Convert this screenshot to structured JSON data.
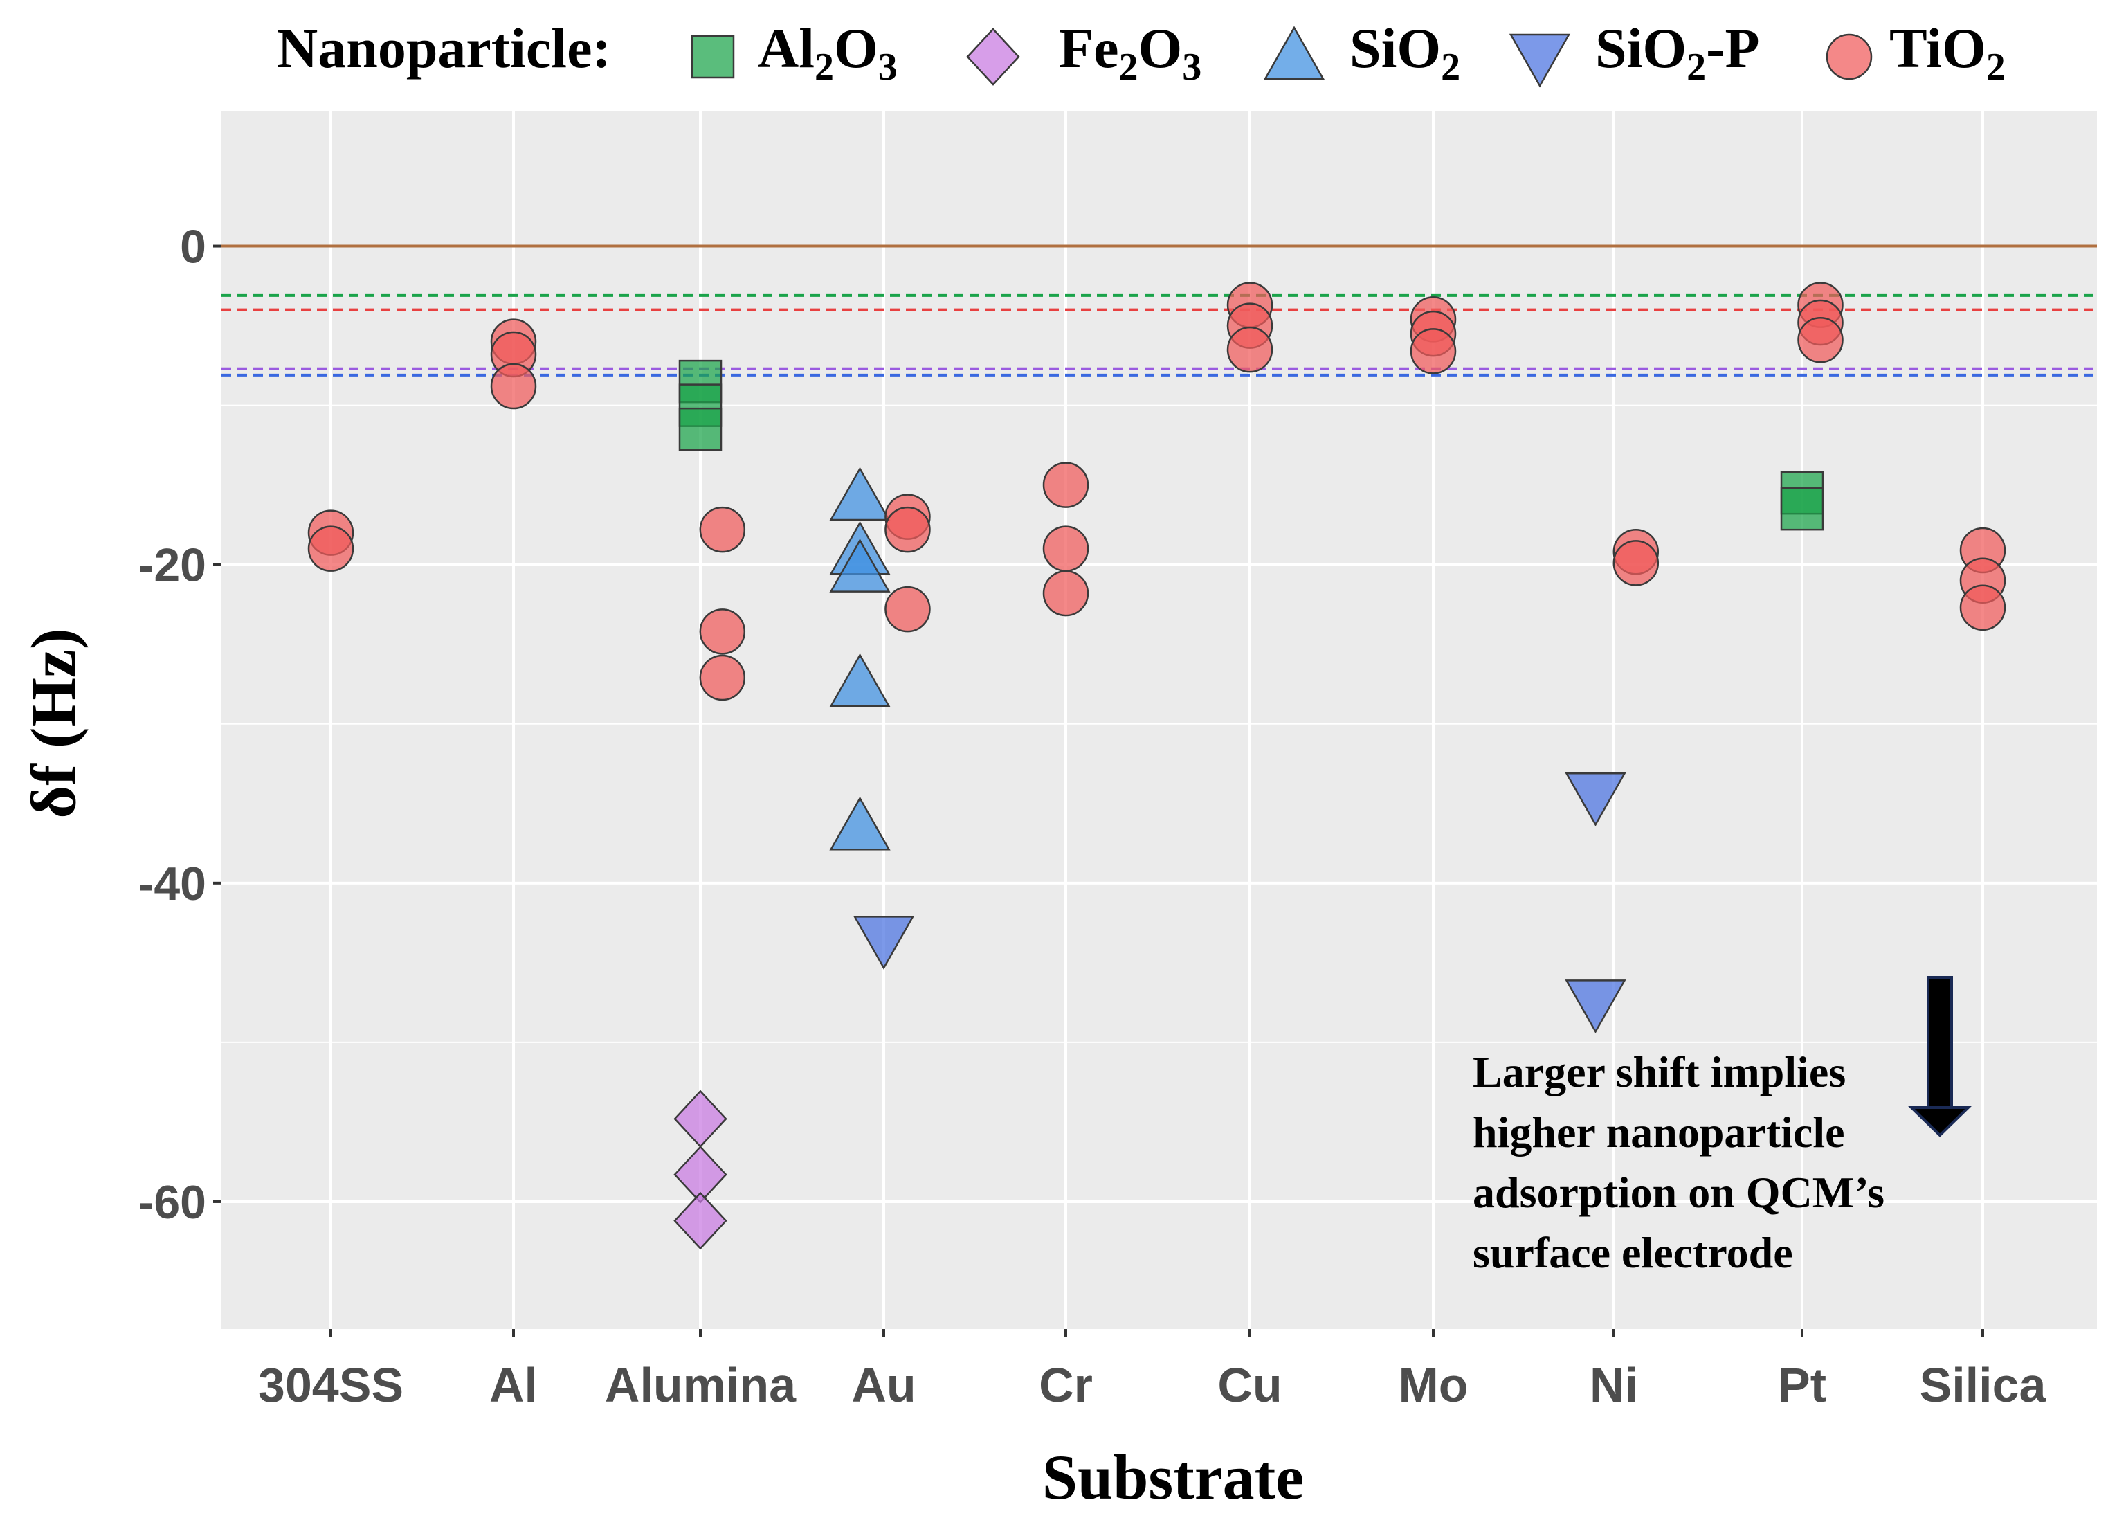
{
  "chart_data": {
    "type": "scatter",
    "legend": {
      "title": "Nanoparticle:",
      "placement": "top",
      "entries": [
        {
          "key": "Al2O3",
          "base": "Al",
          "sub1": "2",
          "mid": "O",
          "sub2": "3",
          "tail": ""
        },
        {
          "key": "Fe2O3",
          "base": "Fe",
          "sub1": "2",
          "mid": "O",
          "sub2": "3",
          "tail": ""
        },
        {
          "key": "SiO2",
          "base": "SiO",
          "sub1": "2",
          "mid": "",
          "sub2": "",
          "tail": ""
        },
        {
          "key": "SiO2-P",
          "base": "SiO",
          "sub1": "2",
          "mid": "",
          "sub2": "",
          "tail": "-P"
        },
        {
          "key": "TiO2",
          "base": "TiO",
          "sub1": "2",
          "mid": "",
          "sub2": "",
          "tail": ""
        }
      ]
    },
    "xlabel": "Substrate",
    "ylabel": "δf (Hz)",
    "ylim": [
      -68,
      8.5
    ],
    "yticks": [
      0,
      -20,
      -40,
      -60
    ],
    "ytick_labels": [
      "0",
      "-20",
      "-40",
      "-60"
    ],
    "grid": true,
    "categories": [
      "304SS",
      "Al",
      "Alumina",
      "Au",
      "Cr",
      "Cu",
      "Mo",
      "Ni",
      "Pt",
      "Silica"
    ],
    "series": [
      {
        "name": "Al2O3",
        "color": "#1aa34a",
        "shape": "square",
        "points": [
          {
            "x": "Alumina",
            "offset": 0,
            "y": -8.5
          },
          {
            "x": "Alumina",
            "offset": 0,
            "y": -10
          },
          {
            "x": "Alumina",
            "offset": 0,
            "y": -11.5
          },
          {
            "x": "Pt",
            "offset": 0,
            "y": -15.5
          },
          {
            "x": "Pt",
            "offset": 0,
            "y": -16.5
          }
        ]
      },
      {
        "name": "Fe2O3",
        "color": "#c878e0",
        "shape": "diamond",
        "points": [
          {
            "x": "Alumina",
            "offset": 0,
            "y": -54.8
          },
          {
            "x": "Alumina",
            "offset": 0,
            "y": -58.3
          },
          {
            "x": "Alumina",
            "offset": 0,
            "y": -61.2
          }
        ]
      },
      {
        "name": "SiO2",
        "color": "#3d8fe0",
        "shape": "triangle-up",
        "points": [
          {
            "x": "Au",
            "offset": -0.13,
            "y": -15.8
          },
          {
            "x": "Au",
            "offset": -0.13,
            "y": -19.2
          },
          {
            "x": "Au",
            "offset": -0.13,
            "y": -20.3
          },
          {
            "x": "Au",
            "offset": -0.13,
            "y": -27.5
          },
          {
            "x": "Au",
            "offset": -0.13,
            "y": -36.5
          }
        ]
      },
      {
        "name": "SiO2-P",
        "color": "#4a72e0",
        "shape": "triangle-down",
        "points": [
          {
            "x": "Au",
            "offset": 0,
            "y": -43.5
          },
          {
            "x": "Ni",
            "offset": -0.1,
            "y": -34.5
          },
          {
            "x": "Ni",
            "offset": -0.1,
            "y": -47.5
          }
        ]
      },
      {
        "name": "TiO2",
        "color": "#f05a5a",
        "shape": "circle",
        "points": [
          {
            "x": "304SS",
            "offset": 0,
            "y": -18
          },
          {
            "x": "304SS",
            "offset": 0,
            "y": -19
          },
          {
            "x": "Al",
            "offset": 0,
            "y": -6
          },
          {
            "x": "Al",
            "offset": 0,
            "y": -6.8
          },
          {
            "x": "Al",
            "offset": 0,
            "y": -8.8
          },
          {
            "x": "Alumina",
            "offset": 0.12,
            "y": -17.8
          },
          {
            "x": "Alumina",
            "offset": 0.12,
            "y": -24.2
          },
          {
            "x": "Alumina",
            "offset": 0.12,
            "y": -27.1
          },
          {
            "x": "Au",
            "offset": 0.13,
            "y": -17
          },
          {
            "x": "Au",
            "offset": 0.13,
            "y": -17.8
          },
          {
            "x": "Au",
            "offset": 0.13,
            "y": -22.8
          },
          {
            "x": "Cr",
            "offset": 0,
            "y": -15
          },
          {
            "x": "Cr",
            "offset": 0,
            "y": -19
          },
          {
            "x": "Cr",
            "offset": 0,
            "y": -21.8
          },
          {
            "x": "Cu",
            "offset": 0,
            "y": -3.7
          },
          {
            "x": "Cu",
            "offset": 0,
            "y": -5
          },
          {
            "x": "Cu",
            "offset": 0,
            "y": -6.5
          },
          {
            "x": "Mo",
            "offset": 0,
            "y": -4.6
          },
          {
            "x": "Mo",
            "offset": 0,
            "y": -5.5
          },
          {
            "x": "Mo",
            "offset": 0,
            "y": -6.6
          },
          {
            "x": "Ni",
            "offset": 0.12,
            "y": -19.2
          },
          {
            "x": "Ni",
            "offset": 0.12,
            "y": -19.9
          },
          {
            "x": "Pt",
            "offset": 0.1,
            "y": -3.7
          },
          {
            "x": "Pt",
            "offset": 0.1,
            "y": -4.8
          },
          {
            "x": "Pt",
            "offset": 0.1,
            "y": -5.9
          },
          {
            "x": "Silica",
            "offset": 0,
            "y": -19.1
          },
          {
            "x": "Silica",
            "offset": 0,
            "y": -21
          },
          {
            "x": "Silica",
            "offset": 0,
            "y": -22.7
          }
        ]
      }
    ],
    "reference_lines": [
      {
        "y": 0,
        "color": "#b07040",
        "style": "solid"
      },
      {
        "y": -3.1,
        "color": "#1aa34a",
        "style": "dashed"
      },
      {
        "y": -4.0,
        "color": "#e84040",
        "style": "dashed"
      },
      {
        "y": -7.7,
        "color": "#9a5ae0",
        "style": "dashed"
      },
      {
        "y": -8.1,
        "color": "#3a68e0",
        "style": "dashed"
      }
    ],
    "annotation": {
      "lines": [
        "Larger shift implies",
        "higher nanoparticle",
        "adsorption on  QCM’s",
        "surface electrode"
      ]
    }
  }
}
